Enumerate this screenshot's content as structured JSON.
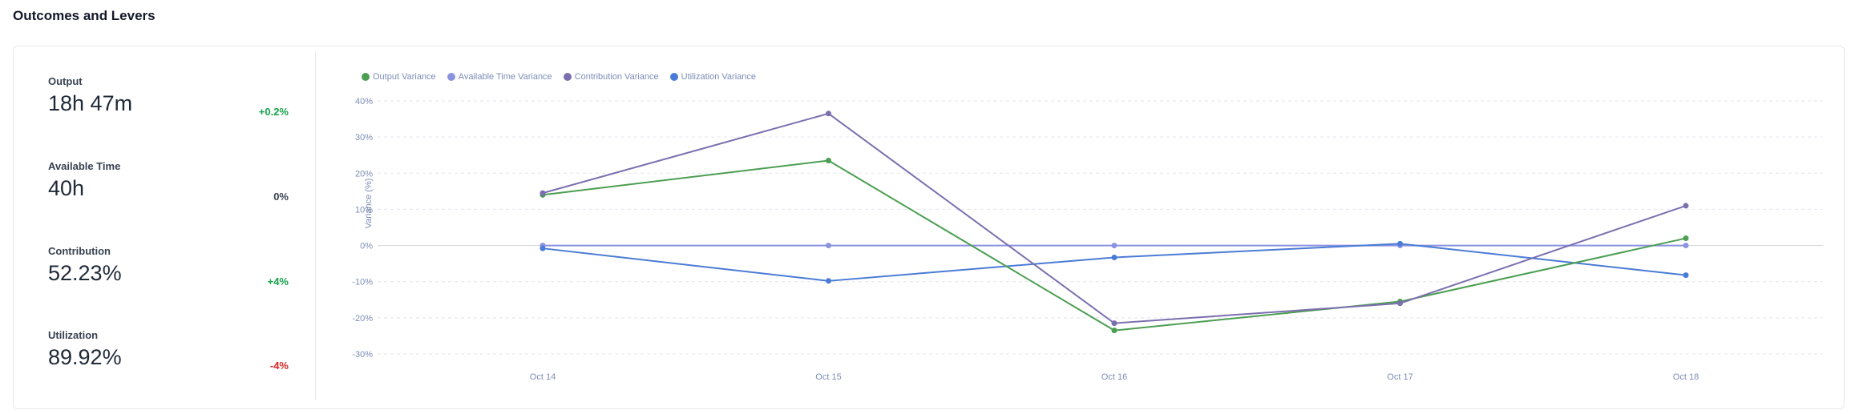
{
  "section": {
    "title": "Outcomes and Levers"
  },
  "metrics": [
    {
      "label": "Output",
      "value": "18h 47m",
      "change": "+0.2%",
      "trend": "positive"
    },
    {
      "label": "Available Time",
      "value": "40h",
      "change": "0%",
      "trend": "neutral"
    },
    {
      "label": "Contribution",
      "value": "52.23%",
      "change": "+4%",
      "trend": "positive"
    },
    {
      "label": "Utilization",
      "value": "89.92%",
      "change": "-4%",
      "trend": "negative"
    }
  ],
  "colors": {
    "output": "#4c9e52",
    "available_time": "#8b93e0",
    "contribution": "#7c6fb0",
    "utilization": "#4a7bd6",
    "grid": "#e2e5ee",
    "zero_line": "#d1d5db",
    "tick_text": "#7c8db5"
  },
  "chart_data": {
    "type": "line",
    "title": "",
    "xlabel": "",
    "ylabel": "Variance (%)",
    "categories": [
      "Oct 14",
      "Oct 15",
      "Oct 16",
      "Oct 17",
      "Oct 18"
    ],
    "ylim": [
      -30,
      40
    ],
    "yticks": [
      40,
      30,
      20,
      10,
      0,
      -10,
      -20,
      -30
    ],
    "ytick_labels": [
      "40%",
      "30%",
      "20%",
      "10%",
      "0%",
      "-10%",
      "-20%",
      "-30%"
    ],
    "grid": true,
    "legend_position": "top-left",
    "series": [
      {
        "name": "Output Variance",
        "key": "output",
        "values": [
          14,
          23.5,
          -23.5,
          -15.5,
          2
        ]
      },
      {
        "name": "Available Time Variance",
        "key": "available_time",
        "values": [
          0,
          0,
          0,
          0,
          0
        ]
      },
      {
        "name": "Contribution Variance",
        "key": "contribution",
        "values": [
          14.5,
          36.5,
          -21.5,
          -16,
          11
        ]
      },
      {
        "name": "Utilization Variance",
        "key": "utilization",
        "values": [
          -0.8,
          -9.8,
          -3.3,
          0.5,
          -8.2
        ]
      }
    ]
  }
}
